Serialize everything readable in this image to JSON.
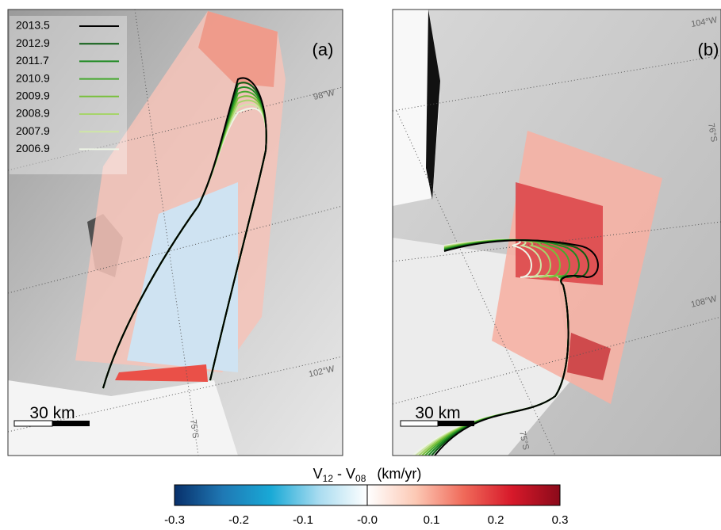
{
  "panels": [
    {
      "label": "(a)",
      "legend": [
        {
          "name": "2013.5",
          "color": "#000000"
        },
        {
          "name": "2012.9",
          "color": "#0b5d12"
        },
        {
          "name": "2011.7",
          "color": "#1e8a22"
        },
        {
          "name": "2010.9",
          "color": "#45a82e"
        },
        {
          "name": "2009.9",
          "color": "#78bf3a"
        },
        {
          "name": "2008.9",
          "color": "#a6d46a"
        },
        {
          "name": "2007.9",
          "color": "#cfe6a6"
        },
        {
          "name": "2006.9",
          "color": "#eef5e6"
        }
      ],
      "graticule_labels": [
        "98°W",
        "102°W",
        "75°S"
      ],
      "scale_bar": "30 km"
    },
    {
      "label": "(b)",
      "graticule_labels": [
        "104°W",
        "76°S",
        "108°W",
        "75°S"
      ],
      "scale_bar": "30 km"
    }
  ],
  "colorbar": {
    "title": {
      "v1": "V",
      "s1": "12",
      "v2": " - V",
      "s2": "08",
      "unit": "(km/yr)"
    },
    "lim": [
      -0.3,
      0.3
    ],
    "ticks": [
      -0.3,
      -0.2,
      -0.1,
      {
        "value": 0,
        "label": "-0.0"
      },
      0.1,
      0.2,
      0.3
    ],
    "colormap": [
      "#08306b",
      "#1f78b4",
      "#19a9d6",
      "#a9dcf0",
      "#ffffff",
      "#fcc9b5",
      "#f06a5a",
      "#d7192a",
      "#8b0a1a"
    ]
  }
}
